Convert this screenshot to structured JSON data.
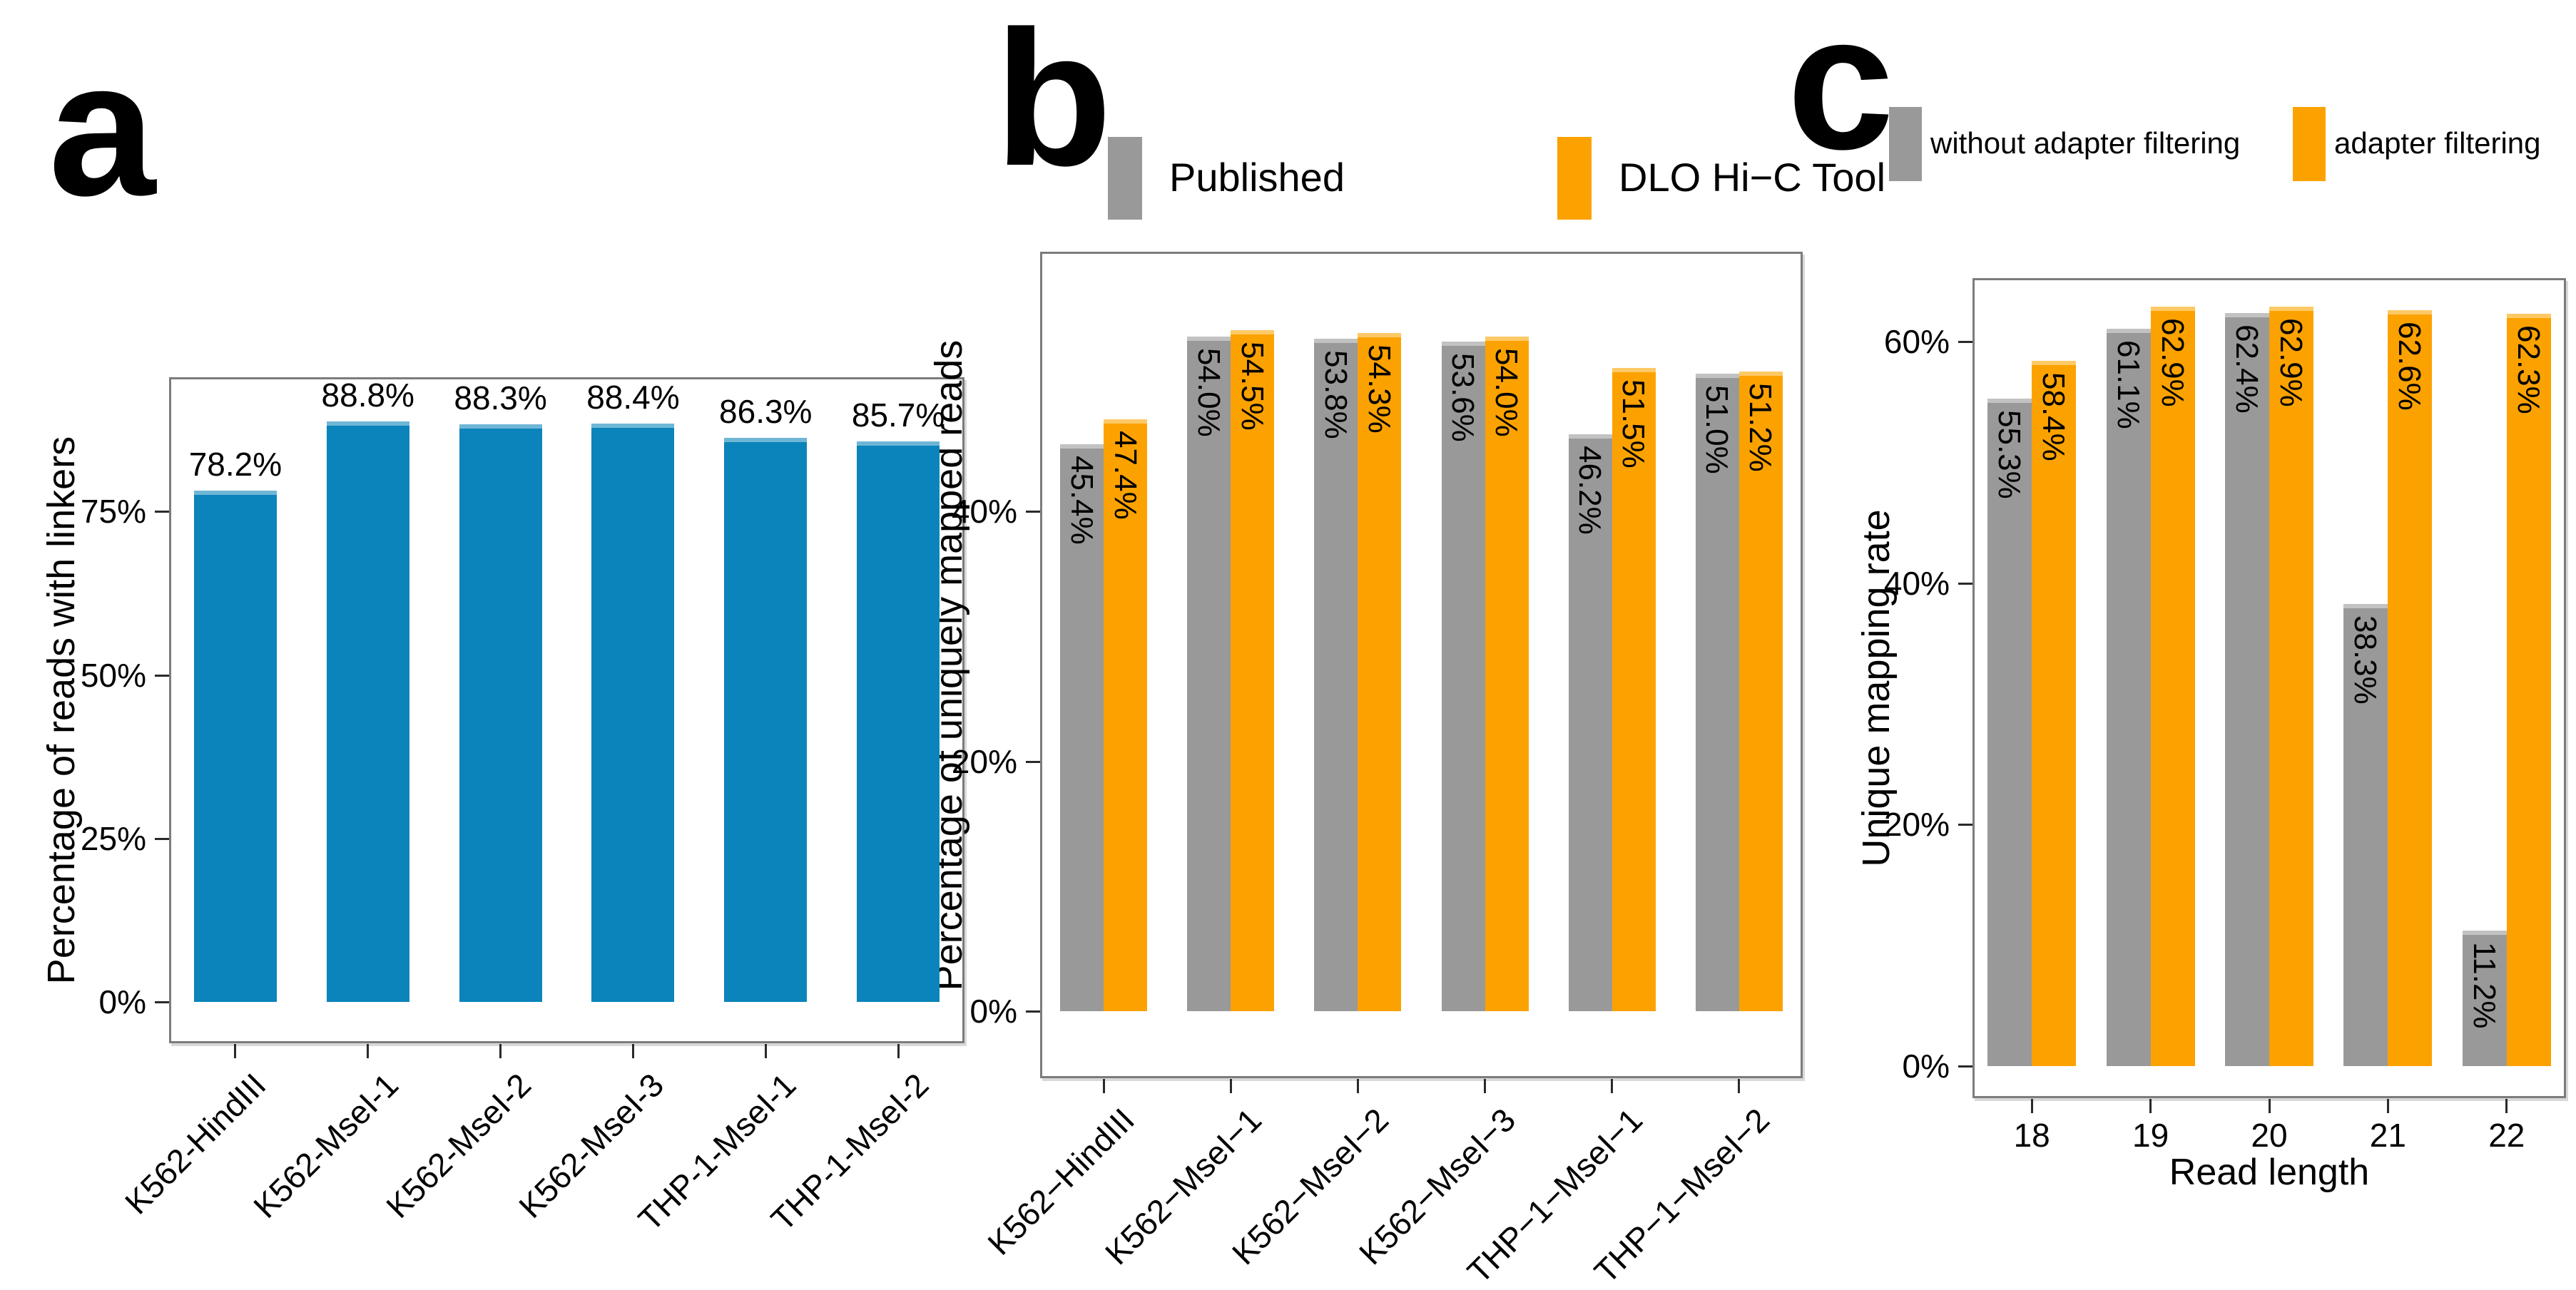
{
  "colors": {
    "blue": "#0a84ba",
    "blue_top": "#6fb6d6",
    "gray": "#999999",
    "gray_top": "#c2c2c2",
    "orange": "#fca200",
    "orange_top": "#fdc966",
    "border": "#7c7c7c",
    "tick": "#2a2a2a"
  },
  "chart_data": [
    {
      "id": "a",
      "type": "bar",
      "panel_label": "a",
      "title": "",
      "ylabel": "Percentage of reads with linkers",
      "xlabel": "",
      "categories": [
        "K562-HindIII",
        "K562-MseI-1",
        "K562-MseI-2",
        "K562-MseI-3",
        "THP-1-MseI-1",
        "THP-1-MseI-2"
      ],
      "series": [
        {
          "name": "",
          "color": "blue",
          "values": [
            78.2,
            88.8,
            88.3,
            88.4,
            86.3,
            85.7
          ],
          "labels": [
            "78.2%",
            "88.8%",
            "88.3%",
            "88.4%",
            "86.3%",
            "85.7%"
          ]
        }
      ],
      "yticks": [
        {
          "value": 0,
          "label": "0%"
        },
        {
          "value": 25,
          "label": "25%"
        },
        {
          "value": 50,
          "label": "50%"
        },
        {
          "value": 75,
          "label": "75%"
        }
      ],
      "ylim": [
        0,
        95
      ],
      "grid": "off",
      "legend": []
    },
    {
      "id": "b",
      "type": "bar",
      "panel_label": "b",
      "title": "",
      "ylabel": "Percentage of uniquely mapped reads",
      "xlabel": "",
      "categories": [
        "K562−HindIII",
        "K562−MseI−1",
        "K562−MseI−2",
        "K562−MseI−3",
        "THP−1−MseI−1",
        "THP−1−MseI−2"
      ],
      "series": [
        {
          "name": "Published",
          "color": "gray",
          "values": [
            45.4,
            54.0,
            53.8,
            53.6,
            46.2,
            51.0
          ],
          "labels": [
            "45.4%",
            "54.0%",
            "53.8%",
            "53.6%",
            "46.2%",
            "51.0%"
          ]
        },
        {
          "name": "DLO Hi−C Tool",
          "color": "orange",
          "values": [
            47.4,
            54.5,
            54.3,
            54.0,
            51.5,
            51.2
          ],
          "labels": [
            "47.4%",
            "54.5%",
            "54.3%",
            "54.0%",
            "51.5%",
            "51.2%"
          ]
        }
      ],
      "yticks": [
        {
          "value": 0,
          "label": "0%"
        },
        {
          "value": 20,
          "label": "20%"
        },
        {
          "value": 40,
          "label": "40%"
        }
      ],
      "ylim": [
        0,
        61
      ],
      "grid": "off",
      "legend": [
        {
          "label": "Published",
          "color": "gray"
        },
        {
          "label": "DLO Hi−C Tool",
          "color": "orange"
        }
      ],
      "legend_position": "top"
    },
    {
      "id": "c",
      "type": "bar",
      "panel_label": "c",
      "title": "",
      "ylabel": "Unique mapping rate",
      "xlabel": "Read length",
      "categories": [
        "18",
        "19",
        "20",
        "21",
        "22"
      ],
      "series": [
        {
          "name": "without adapter filtering",
          "color": "gray",
          "values": [
            55.3,
            61.1,
            62.4,
            38.3,
            11.2
          ],
          "labels": [
            "55.3%",
            "61.1%",
            "62.4%",
            "38.3%",
            "11.2%"
          ]
        },
        {
          "name": "adapter filtering",
          "color": "orange",
          "values": [
            58.4,
            62.9,
            62.9,
            62.6,
            62.3
          ],
          "labels": [
            "58.4%",
            "62.9%",
            "62.9%",
            "62.6%",
            "62.3%"
          ]
        }
      ],
      "yticks": [
        {
          "value": 0,
          "label": "0%"
        },
        {
          "value": 20,
          "label": "20%"
        },
        {
          "value": 40,
          "label": "40%"
        },
        {
          "value": 60,
          "label": "60%"
        }
      ],
      "ylim": [
        0,
        65
      ],
      "grid": "off",
      "legend": [
        {
          "label": "without adapter filtering",
          "color": "gray"
        },
        {
          "label": "adapter filtering",
          "color": "orange"
        }
      ],
      "legend_position": "top"
    }
  ]
}
